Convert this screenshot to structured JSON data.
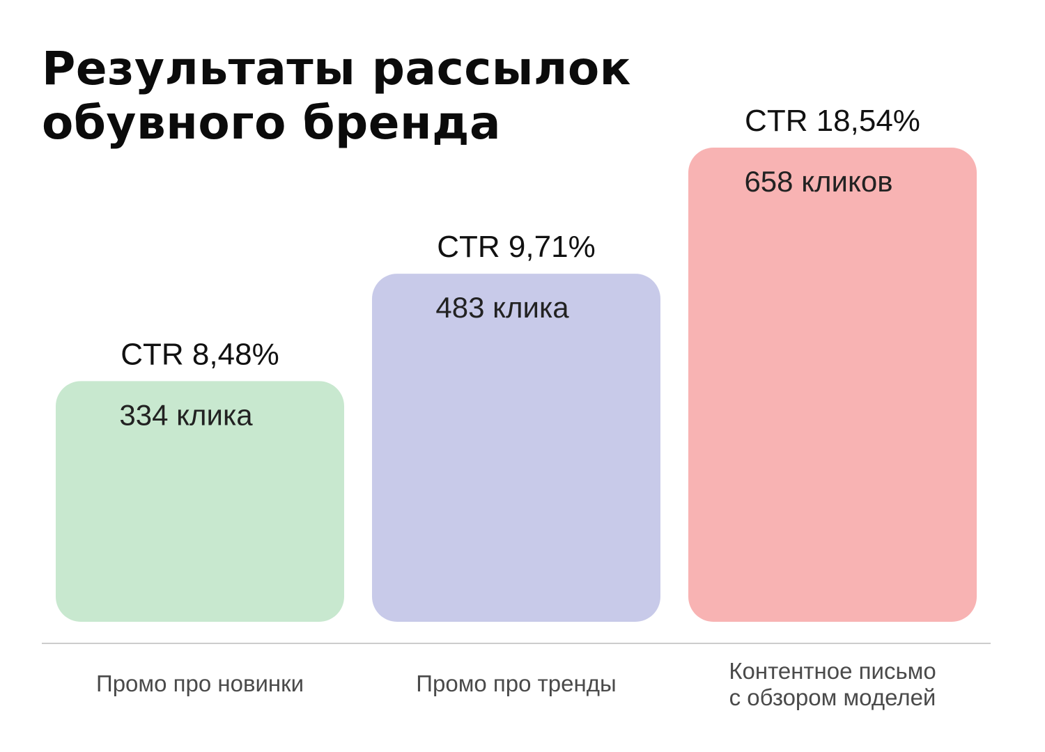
{
  "chart_data": {
    "type": "bar",
    "title": "Результаты рассылок обувного бренда",
    "title_lines": [
      "Результаты рассылок",
      "обувного бренда"
    ],
    "categories": [
      [
        "Промо про новинки"
      ],
      [
        "Промо про тренды"
      ],
      [
        "Контентное письмо",
        "с обзором моделей"
      ]
    ],
    "values": [
      334,
      483,
      658
    ],
    "value_labels": [
      "334 клика",
      "483 клика",
      "658 кликов"
    ],
    "ctr_values": [
      8.48,
      9.71,
      18.54
    ],
    "ctr_labels": [
      "CTR 8,48%",
      "CTR 9,71%",
      "CTR 18,54%"
    ],
    "colors": [
      "#c8e8cf",
      "#c8cae9",
      "#f8b3b3"
    ],
    "baseline_color": "#cccccc",
    "grid": false,
    "legend": "none"
  }
}
